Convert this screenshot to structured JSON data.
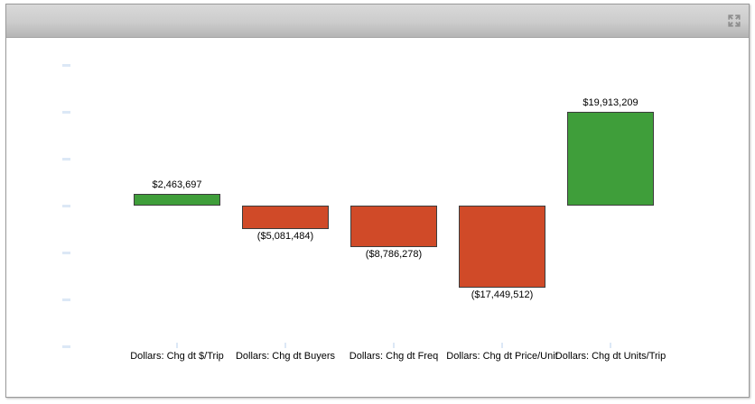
{
  "window": {
    "title_text": "",
    "expand_icon_color": "#8f8f8f"
  },
  "chart_data": {
    "type": "bar",
    "subtype": "contribution-waterfall",
    "title": "",
    "xlabel": "",
    "ylabel": "",
    "categories": [
      "Dollars: Chg dt $/Trip",
      "Dollars: Chg dt Buyers",
      "Dollars: Chg dt Freq",
      "Dollars: Chg dt Price/Unit",
      "Dollars: Chg dt Units/Trip"
    ],
    "values": [
      2463697,
      -5081484,
      -8786278,
      -17449512,
      19913209
    ],
    "value_labels": [
      "$2,463,697",
      "($5,081,484)",
      "($8,786,278)",
      "($17,449,512)",
      "$19,913,209"
    ],
    "positive_color": "#3f9e3a",
    "negative_color": "#d04a28",
    "bar_border_color": "#3c3c3c",
    "grid": false,
    "legend_visible": false,
    "y_axis": {
      "tick_values": [
        30000000,
        20000000,
        10000000,
        0,
        -10000000,
        -20000000,
        -30000000
      ],
      "tick_spacing_dollars": 10000000,
      "tick_labels_visible": false,
      "tick_color": "#dce8f6"
    },
    "x_axis": {
      "tick_color": "#dce8f6",
      "labels_visible": true
    },
    "ylim": [
      -32000000,
      36000000
    ]
  }
}
